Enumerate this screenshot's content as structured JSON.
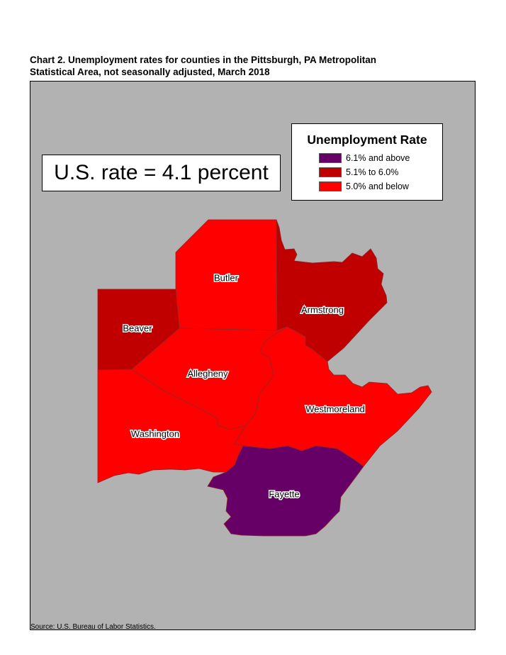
{
  "title_lines": [
    "Chart 2. Unemployment rates for counties in the Pittsburgh, PA Metropolitan",
    "Statistical Area, not seasonally adjusted, March 2018"
  ],
  "us_rate": "U.S. rate = 4.1 percent",
  "legend": {
    "title": "Unemployment Rate",
    "items": [
      {
        "label": "6.1% and above",
        "color": "#660066"
      },
      {
        "label": "5.1% to 6.0%",
        "color": "#c00000"
      },
      {
        "label": "5.0% and below",
        "color": "#ff0000"
      }
    ]
  },
  "counties": [
    {
      "name": "Butler",
      "category": "5.0% and below",
      "color": "#ff0000"
    },
    {
      "name": "Armstrong",
      "category": "5.1% to 6.0%",
      "color": "#c00000"
    },
    {
      "name": "Beaver",
      "category": "5.1% to 6.0%",
      "color": "#c00000"
    },
    {
      "name": "Allegheny",
      "category": "5.0% and below",
      "color": "#ff0000"
    },
    {
      "name": "Westmoreland",
      "category": "5.0% and below",
      "color": "#ff0000"
    },
    {
      "name": "Washington",
      "category": "5.0% and below",
      "color": "#ff0000"
    },
    {
      "name": "Fayette",
      "category": "6.1% and above",
      "color": "#660066"
    }
  ],
  "map_background": "#b2b2b2",
  "source": "Source: U.S. Bureau of Labor Statistics."
}
